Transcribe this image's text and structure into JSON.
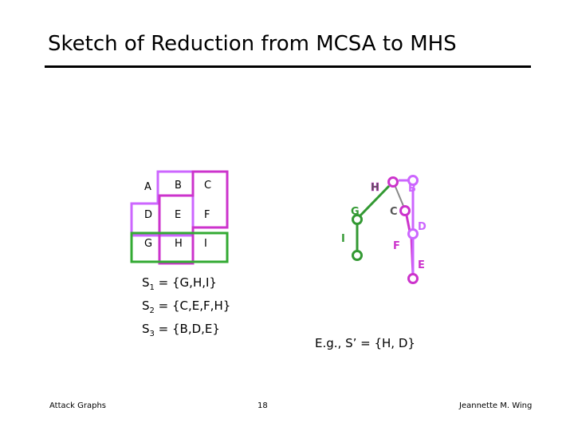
{
  "slide": {
    "title": "Sketch of Reduction from MCSA to MHS",
    "grid": {
      "cells": [
        "A",
        "B",
        "C",
        "D",
        "E",
        "F",
        "G",
        "H",
        "I"
      ],
      "colors": {
        "s1": "#33aa33",
        "s2": "#cc33cc",
        "s3": "#cc66ff"
      }
    },
    "sets": {
      "s1": {
        "name": "S",
        "sub": "1",
        "value": " = {G,H,I}"
      },
      "s2": {
        "name": "S",
        "sub": "2",
        "value": " = {C,E,F,H}"
      },
      "s3": {
        "name": "S",
        "sub": "3",
        "value": " = {B,D,E}"
      }
    },
    "graph": {
      "nodes": {
        "H": "H",
        "B": "B",
        "G": "G",
        "C": "C",
        "D": "D",
        "I": "I",
        "F": "F",
        "E": "E"
      },
      "colors": {
        "green": "#339933",
        "magenta": "#cc33cc",
        "purple": "#cc66ff",
        "gray": "#888888"
      }
    },
    "example": "E.g., S’ = {H, D}",
    "footer": {
      "left": "Attack Graphs",
      "center": "18",
      "right": "Jeannette M. Wing"
    }
  }
}
